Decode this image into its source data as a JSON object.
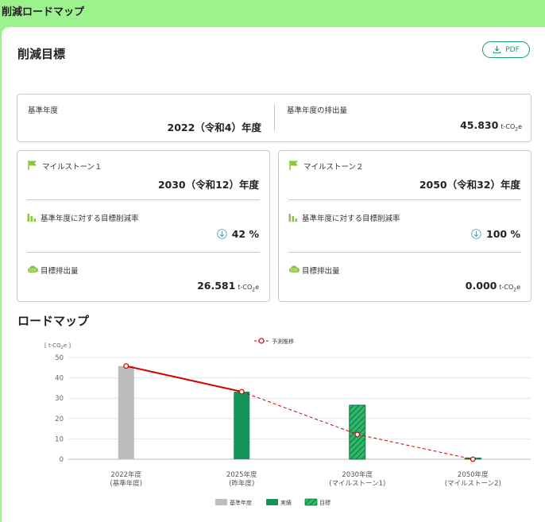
{
  "header": {
    "title": "削減ロードマップ"
  },
  "targets": {
    "title": "削減目標",
    "pdf_label": "PDF",
    "base_year_label": "基準年度",
    "base_year_value": "2022（令和4）年度",
    "base_emission_label": "基準年度の排出量",
    "base_emission_value": "45.830",
    "unit_main": "t-CO",
    "unit_sub": "2",
    "unit_suffix": "e"
  },
  "milestones": [
    {
      "title": "マイルストーン１",
      "year": "2030（令和12）年度",
      "rate_label": "基準年度に対する目標削減率",
      "rate_value": "42",
      "rate_unit": "%",
      "emission_label": "目標排出量",
      "emission_value": "26.581"
    },
    {
      "title": "マイルストーン２",
      "year": "2050（令和32）年度",
      "rate_label": "基準年度に対する目標削減率",
      "rate_value": "100",
      "rate_unit": "%",
      "emission_label": "目標排出量",
      "emission_value": "0.000"
    }
  ],
  "roadmap": {
    "title": "ロードマップ"
  },
  "colors": {
    "header_bg": "#9cf28c",
    "accent_green": "#1a9a6c",
    "icon_green": "#8cc63f",
    "base_bar": "#bdbdbd",
    "actual_bar": "#13925a",
    "target_bar": "#2db86a",
    "forecast_line": "#d40000"
  },
  "chart_data": {
    "type": "bar",
    "ylabel_main": "[ t-CO",
    "ylabel_sub": "2",
    "ylabel_end": "e ]",
    "ylim": [
      0,
      50
    ],
    "yticks": [
      0,
      10,
      20,
      30,
      40,
      50
    ],
    "categories": [
      [
        "2022年度",
        "(基準年度)"
      ],
      [
        "2025年度",
        "(昨年度)"
      ],
      [
        "2030年度",
        "(マイルストーン1)"
      ],
      [
        "2050年度",
        "(マイルストーン2)"
      ]
    ],
    "series": [
      {
        "name": "基準年度",
        "kind": "base",
        "values": [
          45.83,
          null,
          null,
          null
        ]
      },
      {
        "name": "実績",
        "kind": "actual",
        "values": [
          null,
          33.2,
          null,
          null
        ]
      },
      {
        "name": "目標",
        "kind": "target",
        "values": [
          null,
          null,
          26.581,
          0.0
        ]
      }
    ],
    "line": {
      "name": "予測推移",
      "values": [
        45.83,
        33.2,
        12.2,
        0.0
      ]
    },
    "legend_position": "top-center (line), bottom-center (bars)"
  }
}
